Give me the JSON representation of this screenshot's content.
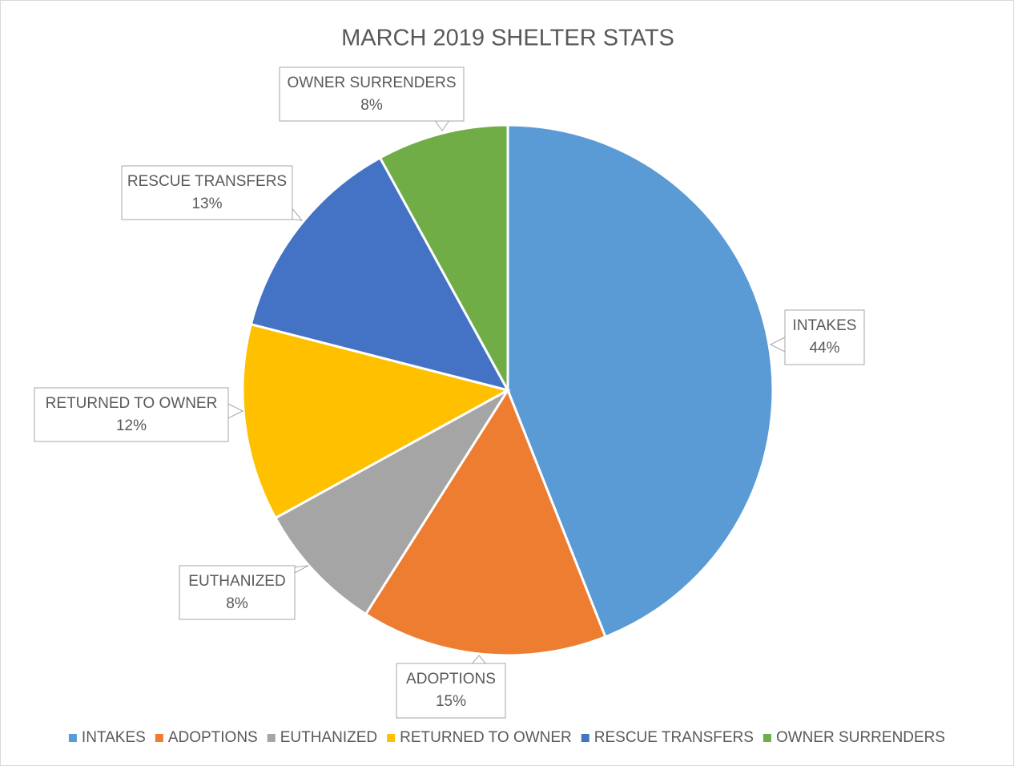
{
  "chart_data": {
    "type": "pie",
    "title": "MARCH 2019 SHELTER STATS",
    "categories": [
      "INTAKES",
      "ADOPTIONS",
      "EUTHANIZED",
      "RETURNED TO OWNER",
      "RESCUE TRANSFERS",
      "OWNER SURRENDERS"
    ],
    "values": [
      44,
      15,
      8,
      12,
      13,
      8
    ],
    "value_labels": [
      "44%",
      "15%",
      "8%",
      "12%",
      "13%",
      "8%"
    ],
    "colors": [
      "#5b9bd5",
      "#ed7d31",
      "#a5a5a5",
      "#ffc000",
      "#4472c4",
      "#70ad47"
    ],
    "legend": "bottom"
  }
}
